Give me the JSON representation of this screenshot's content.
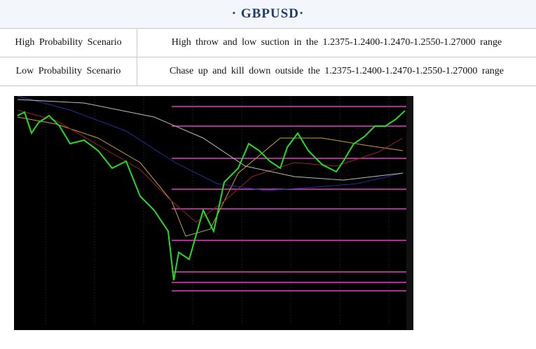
{
  "header": {
    "title": "· GBPUSD·"
  },
  "table": {
    "rows": [
      [
        "High Probability Scenario",
        "High throw and low suction in the 1.2375-1.2400-1.2470-1.2550-1.27000 range"
      ],
      [
        "Low Probability Scenario",
        "Chase up and kill down outside the 1.2375-1.2400-1.2470-1.2550-1.27000 range"
      ]
    ]
  }
}
